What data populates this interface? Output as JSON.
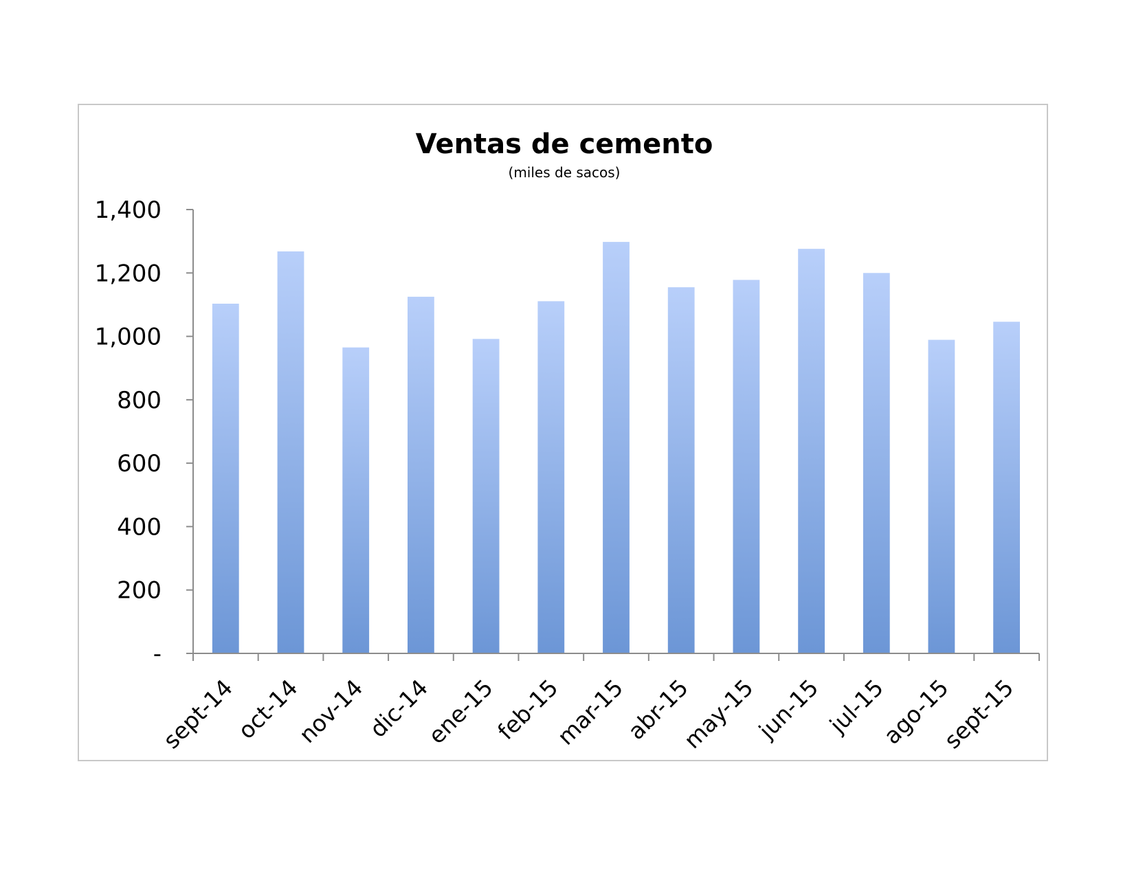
{
  "chart_data": {
    "type": "bar",
    "title": "Ventas de cemento",
    "subtitle": "(miles de sacos)",
    "xlabel": "",
    "ylabel": "",
    "categories": [
      "sept-14",
      "oct-14",
      "nov-14",
      "dic-14",
      "ene-15",
      "feb-15",
      "mar-15",
      "abr-15",
      "may-15",
      "jun-15",
      "jul-15",
      "ago-15",
      "sept-15"
    ],
    "values": [
      1103,
      1268,
      965,
      1125,
      992,
      1111,
      1298,
      1155,
      1178,
      1276,
      1200,
      989,
      1046
    ],
    "ylim": [
      0,
      1400
    ],
    "yticks": [
      {
        "value": 0,
        "label": "-"
      },
      {
        "value": 200,
        "label": "200"
      },
      {
        "value": 400,
        "label": "400"
      },
      {
        "value": 600,
        "label": "600"
      },
      {
        "value": 800,
        "label": "800"
      },
      {
        "value": 1000,
        "label": "1,000"
      },
      {
        "value": 1200,
        "label": "1,200"
      },
      {
        "value": 1400,
        "label": "1,400"
      }
    ],
    "grid": false,
    "legend": "none",
    "colors": {
      "bar_top": "#b8cffa",
      "bar_bottom": "#6c96d6",
      "axis": "#8c8c8c",
      "frame": "#c8c8c8"
    }
  }
}
